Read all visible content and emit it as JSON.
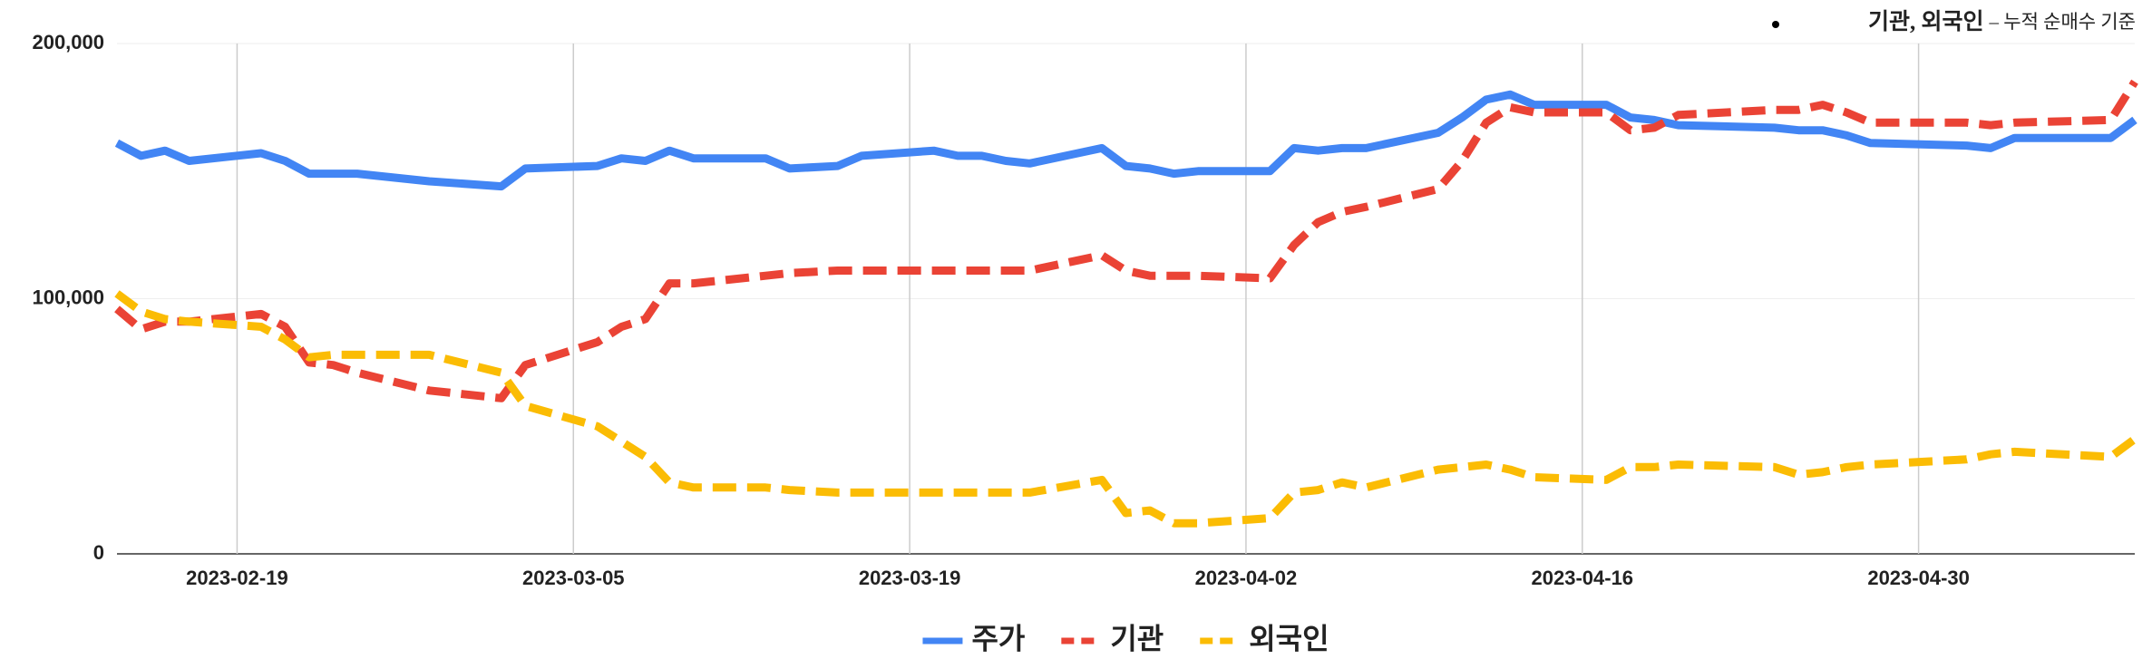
{
  "chart_data": {
    "type": "line",
    "annotation": {
      "bold": "기관, 외국인",
      "text": "– 누적 순매수 기준"
    },
    "x": [
      "2023-02-14",
      "2023-02-15",
      "2023-02-16",
      "2023-02-17",
      "2023-02-20",
      "2023-02-21",
      "2023-02-22",
      "2023-02-23",
      "2023-02-24",
      "2023-02-27",
      "2023-03-02",
      "2023-03-03",
      "2023-03-06",
      "2023-03-07",
      "2023-03-08",
      "2023-03-09",
      "2023-03-10",
      "2023-03-13",
      "2023-03-14",
      "2023-03-16",
      "2023-03-17",
      "2023-03-20",
      "2023-03-21",
      "2023-03-22",
      "2023-03-23",
      "2023-03-24",
      "2023-03-27",
      "2023-03-28",
      "2023-03-29",
      "2023-03-30",
      "2023-03-31",
      "2023-04-03",
      "2023-04-04",
      "2023-04-05",
      "2023-04-06",
      "2023-04-07",
      "2023-04-10",
      "2023-04-11",
      "2023-04-12",
      "2023-04-13",
      "2023-04-14",
      "2023-04-17",
      "2023-04-18",
      "2023-04-19",
      "2023-04-20",
      "2023-04-24",
      "2023-04-25",
      "2023-04-26",
      "2023-04-27",
      "2023-04-28",
      "2023-05-02",
      "2023-05-03",
      "2023-05-04",
      "2023-05-08",
      "2023-05-09"
    ],
    "series": [
      {
        "name": "주가",
        "color": "#4285f4",
        "dashed": false,
        "values": [
          161000,
          156000,
          158000,
          154000,
          157000,
          154000,
          149000,
          149000,
          149000,
          146000,
          144000,
          151000,
          152000,
          155000,
          154000,
          158000,
          155000,
          155000,
          151000,
          152000,
          156000,
          158000,
          156000,
          156000,
          154000,
          153000,
          159000,
          152000,
          151000,
          149000,
          150000,
          150000,
          159000,
          158000,
          159000,
          159000,
          165000,
          171000,
          178000,
          180000,
          176000,
          176000,
          171000,
          170000,
          168000,
          167000,
          166000,
          166000,
          164000,
          161000,
          160000,
          159000,
          163000,
          163000,
          170000
        ]
      },
      {
        "name": "기관",
        "color": "#ea4335",
        "dashed": true,
        "values": [
          96000,
          88000,
          91000,
          91000,
          94000,
          89000,
          75000,
          74000,
          71000,
          64000,
          61000,
          74000,
          83000,
          89000,
          92000,
          106000,
          106000,
          109000,
          110000,
          111000,
          111000,
          111000,
          111000,
          111000,
          111000,
          111000,
          117000,
          111000,
          109000,
          109000,
          109000,
          108000,
          121000,
          130000,
          134000,
          136000,
          143000,
          154000,
          169000,
          175000,
          173000,
          173000,
          166000,
          167000,
          172000,
          174000,
          174000,
          176000,
          173000,
          169000,
          169000,
          168000,
          169000,
          170000,
          185000
        ]
      },
      {
        "name": "외국인",
        "color": "#fbbc04",
        "dashed": true,
        "values": [
          102000,
          95000,
          92000,
          91000,
          89000,
          84000,
          77000,
          78000,
          78000,
          78000,
          71000,
          58000,
          50000,
          44000,
          38000,
          28000,
          26000,
          26000,
          25000,
          24000,
          24000,
          24000,
          24000,
          24000,
          24000,
          24000,
          29000,
          16000,
          17000,
          12000,
          12000,
          14000,
          24000,
          25000,
          28000,
          26000,
          33000,
          34000,
          35000,
          33000,
          30000,
          29000,
          34000,
          34000,
          35000,
          34000,
          31000,
          32000,
          34000,
          35000,
          37000,
          39000,
          40000,
          38000,
          45000
        ]
      }
    ],
    "xlim": [
      "2023-02-14",
      "2023-05-09"
    ],
    "xticks": [
      "2023-02-19",
      "2023-03-05",
      "2023-03-19",
      "2023-04-02",
      "2023-04-16",
      "2023-04-30"
    ],
    "ylim": [
      0,
      200000
    ],
    "yticks": [
      0,
      {
        "value": 100000,
        "label": "100,000"
      },
      {
        "value": 200000,
        "label": "200,000"
      }
    ],
    "grid": true,
    "legend": "bottom"
  }
}
